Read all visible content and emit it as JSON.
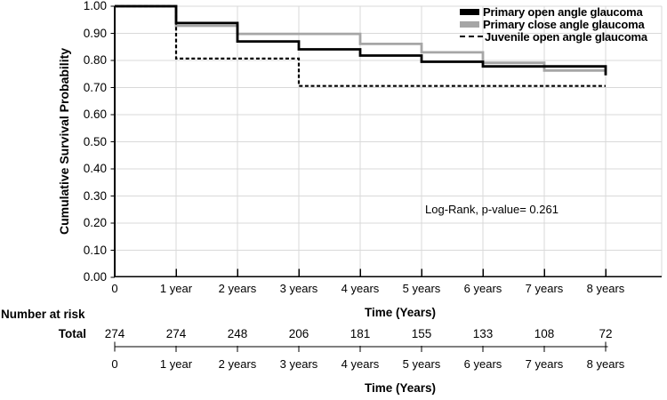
{
  "colors": {
    "black": "#000000",
    "gray": "#a6a6a6",
    "grid": "#d9d9d9"
  },
  "y_axis": {
    "title": "Cumulative Survival Probability",
    "tick_labels": [
      "1.00",
      "0.90",
      "0.80",
      "0.70",
      "0.60",
      "0.50",
      "0.40",
      "0.30",
      "0.20",
      "0.10",
      "0.00"
    ]
  },
  "x_axis": {
    "title": "Time (Years)",
    "tick_labels": [
      "0",
      "1 year",
      "2 years",
      "3 years",
      "4 years",
      "5 years",
      "6 years",
      "7 years",
      "8 years"
    ]
  },
  "legend": {
    "items": [
      {
        "label": "Primary open angle glaucoma",
        "swatch": "solid-black"
      },
      {
        "label": "Primary close angle glaucoma",
        "swatch": "solid-gray"
      },
      {
        "label": "Juvenile open angle glaucoma",
        "swatch": "dashed-black"
      }
    ]
  },
  "annotation": {
    "text": "Log-Rank, p-value= 0.261"
  },
  "risk_table": {
    "header": "Number at risk",
    "row_label": "Total",
    "values": [
      "274",
      "274",
      "248",
      "206",
      "181",
      "155",
      "133",
      "108",
      "72"
    ],
    "axis_tick_labels": [
      "0",
      "1 year",
      "2 years",
      "3 years",
      "4 years",
      "5 years",
      "6 years",
      "7 years",
      "8 years"
    ],
    "axis_title": "Time (Years)"
  },
  "chart_data": {
    "type": "line",
    "subtype": "kaplan-meier-step",
    "title": "",
    "xlabel": "Time (Years)",
    "ylabel": "Cumulative Survival Probability",
    "xlim": [
      0,
      8
    ],
    "ylim": [
      0.0,
      1.0
    ],
    "y_tick_step": 0.1,
    "grid": true,
    "legend_position": "top-right",
    "annotation": "Log-Rank, p-value= 0.261",
    "series": [
      {
        "name": "Primary close angle glaucoma",
        "color": "#a6a6a6",
        "dash": "solid",
        "width": 2.8,
        "steps": [
          [
            0,
            1.0
          ],
          [
            1,
            1.0
          ],
          [
            1,
            0.928
          ],
          [
            2,
            0.928
          ],
          [
            2,
            0.898
          ],
          [
            4,
            0.898
          ],
          [
            4,
            0.861
          ],
          [
            5,
            0.861
          ],
          [
            5,
            0.83
          ],
          [
            6,
            0.83
          ],
          [
            6,
            0.791
          ],
          [
            7,
            0.791
          ],
          [
            7,
            0.763
          ],
          [
            8,
            0.763
          ]
        ]
      },
      {
        "name": "Primary open angle glaucoma",
        "color": "#000000",
        "dash": "solid",
        "width": 2.8,
        "steps": [
          [
            0,
            1.0
          ],
          [
            1,
            1.0
          ],
          [
            1,
            0.938
          ],
          [
            2,
            0.938
          ],
          [
            2,
            0.87
          ],
          [
            3,
            0.87
          ],
          [
            3,
            0.841
          ],
          [
            4,
            0.841
          ],
          [
            4,
            0.818
          ],
          [
            5,
            0.818
          ],
          [
            5,
            0.795
          ],
          [
            6,
            0.795
          ],
          [
            6,
            0.778
          ],
          [
            8,
            0.778
          ],
          [
            8,
            0.745
          ]
        ]
      },
      {
        "name": "Juvenile open angle glaucoma",
        "color": "#000000",
        "dash": "dashed",
        "width": 2.2,
        "steps": [
          [
            0,
            1.0
          ],
          [
            1,
            1.0
          ],
          [
            1,
            0.807
          ],
          [
            3,
            0.807
          ],
          [
            3,
            0.706
          ],
          [
            8,
            0.706
          ]
        ]
      }
    ],
    "number_at_risk": {
      "label": "Total",
      "times": [
        0,
        1,
        2,
        3,
        4,
        5,
        6,
        7,
        8
      ],
      "values": [
        274,
        274,
        248,
        206,
        181,
        155,
        133,
        108,
        72
      ]
    }
  }
}
